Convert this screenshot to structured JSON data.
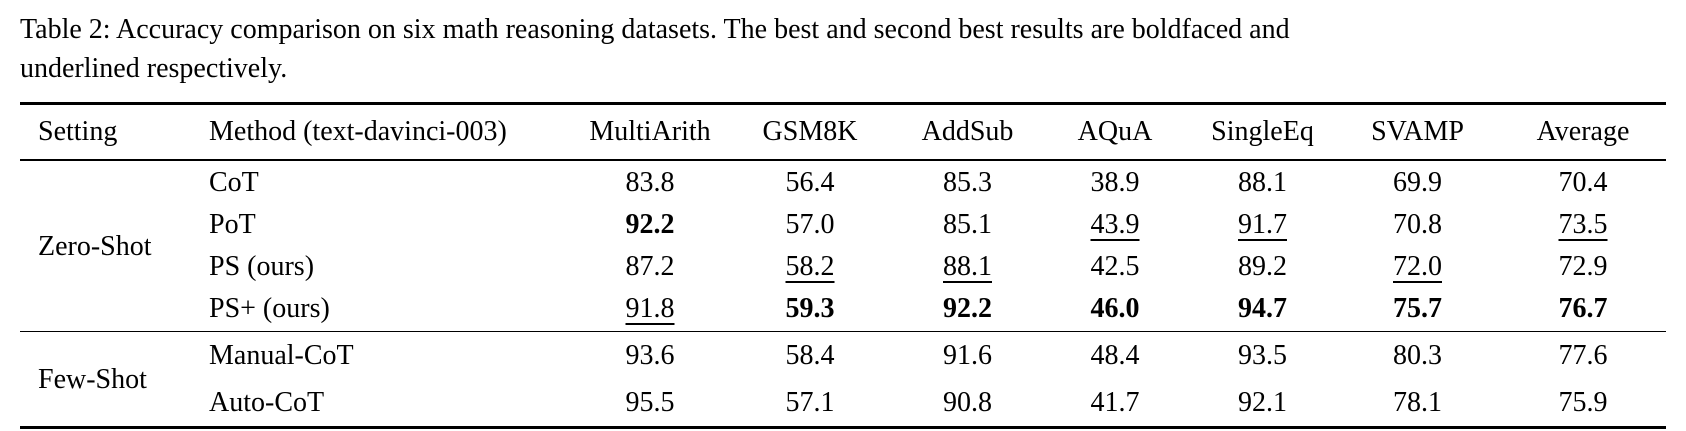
{
  "caption": {
    "line1": "Table 2: Accuracy comparison on six math reasoning datasets. The best and second best results are boldfaced and",
    "line2": "underlined respectively."
  },
  "table": {
    "headers": [
      "Setting",
      "Method (text-davinci-003)",
      "MultiArith",
      "GSM8K",
      "AddSub",
      "AQuA",
      "SingleEq",
      "SVAMP",
      "Average"
    ],
    "sections": [
      {
        "setting": "Zero-Shot",
        "rows": [
          {
            "method": "CoT",
            "values": [
              {
                "text": "83.8",
                "style": "normal"
              },
              {
                "text": "56.4",
                "style": "normal"
              },
              {
                "text": "85.3",
                "style": "normal"
              },
              {
                "text": "38.9",
                "style": "normal"
              },
              {
                "text": "88.1",
                "style": "normal"
              },
              {
                "text": "69.9",
                "style": "normal"
              },
              {
                "text": "70.4",
                "style": "normal"
              }
            ]
          },
          {
            "method": "PoT",
            "values": [
              {
                "text": "92.2",
                "style": "bold"
              },
              {
                "text": "57.0",
                "style": "normal"
              },
              {
                "text": "85.1",
                "style": "normal"
              },
              {
                "text": "43.9",
                "style": "underline"
              },
              {
                "text": "91.7",
                "style": "underline"
              },
              {
                "text": "70.8",
                "style": "normal"
              },
              {
                "text": "73.5",
                "style": "underline"
              }
            ]
          },
          {
            "method": "PS (ours)",
            "values": [
              {
                "text": "87.2",
                "style": "normal"
              },
              {
                "text": "58.2",
                "style": "underline"
              },
              {
                "text": "88.1",
                "style": "underline"
              },
              {
                "text": "42.5",
                "style": "normal"
              },
              {
                "text": "89.2",
                "style": "normal"
              },
              {
                "text": "72.0",
                "style": "underline"
              },
              {
                "text": "72.9",
                "style": "normal"
              }
            ]
          },
          {
            "method": "PS+ (ours)",
            "values": [
              {
                "text": "91.8",
                "style": "underline"
              },
              {
                "text": "59.3",
                "style": "bold"
              },
              {
                "text": "92.2",
                "style": "bold"
              },
              {
                "text": "46.0",
                "style": "bold"
              },
              {
                "text": "94.7",
                "style": "bold"
              },
              {
                "text": "75.7",
                "style": "bold"
              },
              {
                "text": "76.7",
                "style": "bold"
              }
            ]
          }
        ]
      },
      {
        "setting": "Few-Shot",
        "rows": [
          {
            "method": "Manual-CoT",
            "values": [
              {
                "text": "93.6",
                "style": "normal"
              },
              {
                "text": "58.4",
                "style": "normal"
              },
              {
                "text": "91.6",
                "style": "normal"
              },
              {
                "text": "48.4",
                "style": "normal"
              },
              {
                "text": "93.5",
                "style": "normal"
              },
              {
                "text": "80.3",
                "style": "normal"
              },
              {
                "text": "77.6",
                "style": "normal"
              }
            ]
          },
          {
            "method": "Auto-CoT",
            "values": [
              {
                "text": "95.5",
                "style": "normal"
              },
              {
                "text": "57.1",
                "style": "normal"
              },
              {
                "text": "90.8",
                "style": "normal"
              },
              {
                "text": "41.7",
                "style": "normal"
              },
              {
                "text": "92.1",
                "style": "normal"
              },
              {
                "text": "78.1",
                "style": "normal"
              },
              {
                "text": "75.9",
                "style": "normal"
              }
            ]
          }
        ]
      }
    ]
  }
}
